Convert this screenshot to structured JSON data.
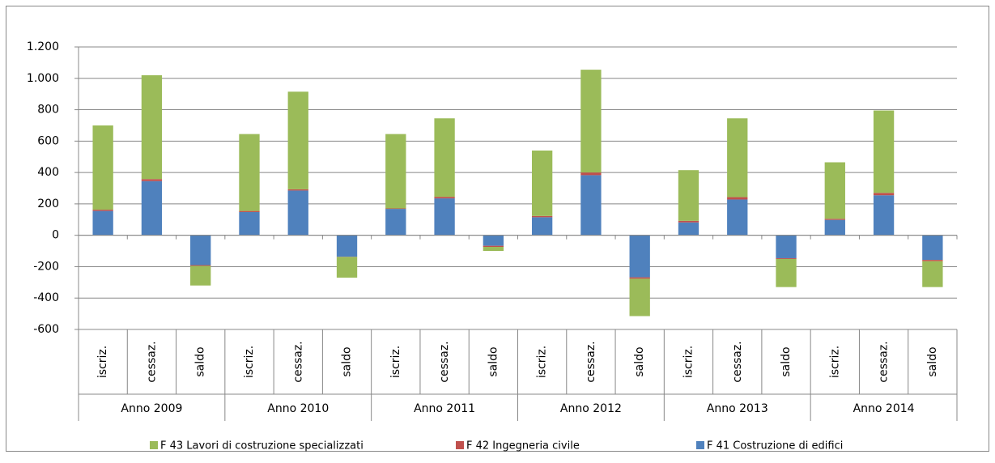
{
  "chart_data": {
    "type": "stacked_bar",
    "categories": [
      "iscriz.",
      "cessaz.",
      "saldo",
      "iscriz.",
      "cessaz.",
      "saldo",
      "iscriz.",
      "cessaz.",
      "saldo",
      "iscriz.",
      "cessaz.",
      "saldo",
      "iscriz.",
      "cessaz.",
      "saldo",
      "iscriz.",
      "cessaz.",
      "saldo"
    ],
    "groups": [
      "Anno 2009",
      "Anno 2010",
      "Anno 2011",
      "Anno 2012",
      "Anno 2013",
      "Anno 2014"
    ],
    "series": [
      {
        "name": "F 41 Costruzione di edifici",
        "color": "#4f81bd",
        "values": [
          155,
          345,
          -190,
          148,
          285,
          -137,
          168,
          235,
          -67,
          115,
          383,
          -268,
          82,
          228,
          -146,
          98,
          255,
          -157
        ]
      },
      {
        "name": "F 42 Ingegneria civile",
        "color": "#c0504d",
        "values": [
          8,
          13,
          -5,
          7,
          8,
          -1,
          3,
          10,
          -7,
          8,
          17,
          -9,
          10,
          15,
          -5,
          7,
          15,
          -8
        ]
      },
      {
        "name": "F 43 Lavori di costruzione specializzati",
        "color": "#9bbb59",
        "values": [
          537,
          662,
          -125,
          490,
          622,
          -132,
          474,
          500,
          -26,
          417,
          655,
          -238,
          323,
          502,
          -179,
          360,
          525,
          -165
        ]
      }
    ],
    "ylim": [
      -600,
      1200
    ],
    "yticks": [
      -600,
      -400,
      -200,
      0,
      200,
      400,
      600,
      800,
      {
        "value": 1000,
        "label": "1.000"
      },
      {
        "value": 1200,
        "label": "1.200"
      }
    ],
    "grid": true,
    "legend": "bottom"
  }
}
